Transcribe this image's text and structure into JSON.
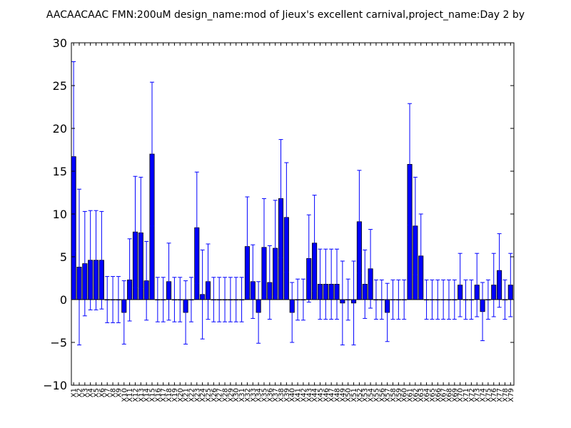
{
  "chart_data": {
    "type": "bar",
    "title": "AACAACAAC  FMN:200uM  design_name:mod of Jieux's excellent carnival,project_name:Day 2 by",
    "xlabel": "",
    "ylabel": "",
    "ylim": [
      -10,
      30
    ],
    "yticks": [
      -10,
      -5,
      0,
      5,
      10,
      15,
      20,
      25,
      30
    ],
    "ytick_labels": [
      "−10",
      "−5",
      "0",
      "5",
      "10",
      "15",
      "20",
      "25",
      "30"
    ],
    "grid": false,
    "bar_color": "#0000ff",
    "error_color": "#0000ff",
    "categories": [
      "X1",
      "X2",
      "X3",
      "X4",
      "X5",
      "X6",
      "X7",
      "X8",
      "X9",
      "X10",
      "X11",
      "X12",
      "X13",
      "X14",
      "X15",
      "X16",
      "X17",
      "X18",
      "X19",
      "X20",
      "X21",
      "X22",
      "X23",
      "X24",
      "X25",
      "X26",
      "X27",
      "X28",
      "X29",
      "X30",
      "X31",
      "X32",
      "X33",
      "X34",
      "X35",
      "X36",
      "X37",
      "X38",
      "X39",
      "X40",
      "X41",
      "X42",
      "X43",
      "X44",
      "X45",
      "X46",
      "X47",
      "X48",
      "X49",
      "X50",
      "X51",
      "X52",
      "X53",
      "X54",
      "X55",
      "X56",
      "X57",
      "X58",
      "X59",
      "X60",
      "X61",
      "X62",
      "X63",
      "X64",
      "X65",
      "X66",
      "X67",
      "X68",
      "X69",
      "X70",
      "X71",
      "X72",
      "X73",
      "X74",
      "X75",
      "X76",
      "X77",
      "X78",
      "X79"
    ],
    "values": [
      16.7,
      3.8,
      4.2,
      4.6,
      4.6,
      4.6,
      0,
      0,
      0,
      -1.5,
      2.3,
      7.9,
      7.8,
      2.2,
      17.0,
      0,
      0,
      2.1,
      0,
      0,
      -1.5,
      0,
      8.4,
      0.6,
      2.1,
      0,
      0,
      0,
      0,
      0,
      0,
      6.2,
      2.1,
      -1.5,
      6.1,
      2.0,
      6.0,
      11.8,
      9.6,
      -1.5,
      0,
      0,
      4.8,
      6.6,
      1.8,
      1.8,
      1.8,
      1.8,
      -0.4,
      0,
      -0.4,
      9.1,
      1.8,
      3.6,
      0,
      0,
      -1.5,
      0,
      0,
      0,
      15.8,
      8.6,
      5.1,
      0,
      0,
      0,
      0,
      0,
      0,
      1.7,
      0,
      0,
      1.7,
      -1.4,
      0,
      1.7,
      3.4,
      0,
      1.7
    ],
    "errors": [
      11.1,
      9.1,
      6.1,
      5.8,
      5.8,
      5.7,
      2.7,
      2.7,
      2.7,
      3.7,
      4.8,
      6.5,
      6.5,
      4.6,
      8.4,
      2.6,
      2.6,
      4.5,
      2.6,
      2.6,
      3.7,
      2.6,
      6.5,
      5.2,
      4.4,
      2.6,
      2.6,
      2.6,
      2.6,
      2.6,
      2.6,
      5.8,
      4.3,
      3.6,
      5.7,
      4.3,
      5.6,
      6.9,
      6.4,
      3.5,
      2.4,
      2.4,
      5.1,
      5.6,
      4.1,
      4.1,
      4.1,
      4.1,
      4.9,
      2.4,
      4.9,
      6.0,
      4.0,
      4.6,
      2.3,
      2.3,
      3.4,
      2.3,
      2.3,
      2.3,
      7.1,
      5.7,
      4.9,
      2.3,
      2.3,
      2.3,
      2.3,
      2.3,
      2.3,
      3.7,
      2.3,
      2.3,
      3.7,
      3.4,
      2.3,
      3.7,
      4.3,
      2.3,
      3.7
    ]
  }
}
